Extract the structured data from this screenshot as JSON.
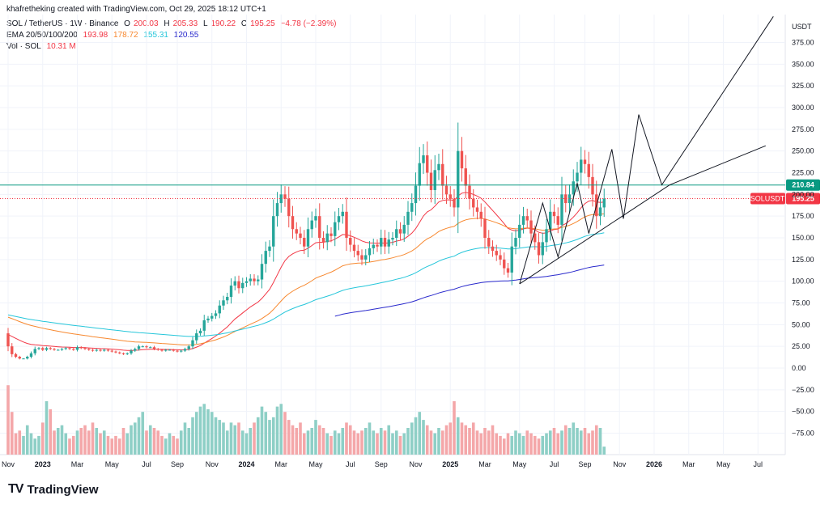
{
  "header": {
    "attribution": "khafretheking created with TradingView.com, Oct 29, 2025 18:12 UTC+1",
    "symbol": "SOL / TetherUS · 1W · Binance",
    "o_label": "O",
    "o_value": "200.03",
    "h_label": "H",
    "h_value": "205.33",
    "l_label": "L",
    "l_value": "190.22",
    "c_label": "C",
    "c_value": "195.25",
    "change": "−4.78 (−2.39%)",
    "ema_label": "EMA 20/50/100/200",
    "ema20": "193.98",
    "ema50": "178.72",
    "ema100": "155.31",
    "ema200": "120.55",
    "vol_label": "Vol · SOL",
    "vol_value": "10.31 M"
  },
  "footer": {
    "brand": "TradingView",
    "logo_glyph": "TV"
  },
  "colors": {
    "up": "#26a69a",
    "down": "#ef5350",
    "ema20": "#f23645",
    "ema50": "#f7882f",
    "ema100": "#26c6da",
    "ema200": "#2929cc",
    "vol_up": "#8ecfc6",
    "vol_down": "#f4a7a9",
    "resistance": "#089981",
    "price_tag": "#f23645",
    "grid": "#f0f3fa"
  },
  "chart_data": {
    "type": "candlestick",
    "currency": "USDT",
    "y_axis_ticks": [
      "375.00",
      "350.00",
      "325.00",
      "300.00",
      "275.00",
      "250.00",
      "225.00",
      "200.00",
      "175.00",
      "150.00",
      "125.00",
      "100.00",
      "75.00",
      "50.00",
      "25.00",
      "0.00",
      "−25.00",
      "−50.00",
      "−75.00"
    ],
    "y_axis_values": [
      375,
      350,
      325,
      300,
      275,
      250,
      225,
      200,
      175,
      150,
      125,
      100,
      75,
      50,
      25,
      0,
      -25,
      -50,
      -75
    ],
    "ylim": [
      -93,
      410
    ],
    "x_axis_labels": [
      "Nov",
      "2023",
      "Mar",
      "May",
      "Jul",
      "Sep",
      "Nov",
      "2024",
      "Mar",
      "May",
      "Jul",
      "Sep",
      "Nov",
      "2025",
      "Mar",
      "May",
      "Jul",
      "Sep",
      "Nov",
      "2026",
      "Mar",
      "May",
      "Jul"
    ],
    "x_axis_week_index": [
      0,
      9,
      18,
      27,
      36,
      44,
      53,
      62,
      71,
      80,
      89,
      97,
      106,
      115,
      124,
      133,
      142,
      150,
      159,
      168,
      177,
      186,
      195
    ],
    "x_axis_bold": [
      "2023",
      "2024",
      "2025",
      "2026"
    ],
    "last_week_index": 156,
    "resistance_label": "210.84",
    "resistance_value": 210.84,
    "price_label": "SOLUSDT",
    "price_value_label": "195.25",
    "price_value": 195.25,
    "closes": [
      25,
      16,
      13,
      11,
      11,
      13,
      17,
      22,
      23,
      21,
      23,
      22,
      21,
      21,
      22,
      23,
      22,
      21,
      24,
      23,
      22,
      21,
      20,
      21,
      20,
      21,
      20,
      19,
      18,
      17,
      16,
      17,
      20,
      22,
      25,
      25,
      24,
      24,
      22,
      21,
      20,
      21,
      21,
      20,
      19,
      20,
      22,
      25,
      32,
      40,
      43,
      55,
      57,
      60,
      63,
      72,
      78,
      82,
      95,
      100,
      92,
      98,
      100,
      103,
      100,
      102,
      120,
      135,
      140,
      175,
      190,
      200,
      195,
      175,
      160,
      155,
      150,
      140,
      160,
      170,
      175,
      150,
      145,
      155,
      152,
      168,
      175,
      180,
      150,
      142,
      135,
      130,
      125,
      130,
      138,
      142,
      140,
      150,
      140,
      148,
      150,
      160,
      155,
      165,
      180,
      190,
      210,
      236,
      245,
      225,
      205,
      228,
      235,
      210,
      200,
      195,
      185,
      250,
      230,
      210,
      195,
      185,
      180,
      172,
      150,
      140,
      135,
      130,
      125,
      115,
      110,
      140,
      150,
      165,
      175,
      170,
      155,
      145,
      130,
      145,
      160,
      180,
      175,
      165,
      200,
      190,
      200,
      215,
      225,
      240,
      235,
      220,
      200,
      175,
      185,
      195.25
    ],
    "volumes": [
      26,
      16,
      8,
      9,
      7,
      11,
      8,
      6,
      7,
      12,
      20,
      17,
      9,
      10,
      11,
      8,
      6,
      7,
      9,
      10,
      11,
      9,
      12,
      10,
      8,
      9,
      7,
      6,
      7,
      6,
      10,
      8,
      11,
      12,
      14,
      16,
      9,
      11,
      10,
      9,
      7,
      6,
      8,
      7,
      6,
      9,
      12,
      10,
      14,
      16,
      18,
      19,
      17,
      16,
      14,
      13,
      12,
      9,
      12,
      11,
      12,
      9,
      8,
      10,
      12,
      14,
      18,
      16,
      13,
      14,
      18,
      19,
      16,
      13,
      11,
      10,
      12,
      8,
      9,
      10,
      13,
      11,
      10,
      8,
      7,
      9,
      8,
      10,
      12,
      11,
      9,
      8,
      9,
      10,
      12,
      9,
      8,
      10,
      9,
      11,
      8,
      9,
      7,
      8,
      10,
      12,
      14,
      16,
      13,
      11,
      9,
      8,
      10,
      9,
      11,
      12,
      20,
      14,
      12,
      11,
      10,
      12,
      9,
      8,
      10,
      9,
      11,
      8,
      7,
      6,
      8,
      7,
      9,
      8,
      7,
      9,
      8,
      7,
      6,
      7,
      8,
      9,
      10,
      8,
      9,
      11,
      10,
      12,
      10,
      9,
      10,
      8,
      9,
      11,
      10,
      3
    ],
    "ema200_start_week": 85,
    "trendlines": [
      {
        "name": "rising-support-trendline",
        "points": [
          [
            133,
            97
          ],
          [
            172,
            210.84
          ],
          [
            197,
            256
          ]
        ]
      },
      {
        "name": "zigzag-pattern",
        "points": [
          [
            133,
            97
          ],
          [
            139,
            190
          ],
          [
            143,
            128
          ],
          [
            148,
            213
          ],
          [
            151,
            155
          ],
          [
            157,
            252
          ],
          [
            160,
            172
          ],
          [
            164,
            292
          ],
          [
            170,
            211
          ],
          [
            199,
            405
          ]
        ]
      }
    ]
  }
}
